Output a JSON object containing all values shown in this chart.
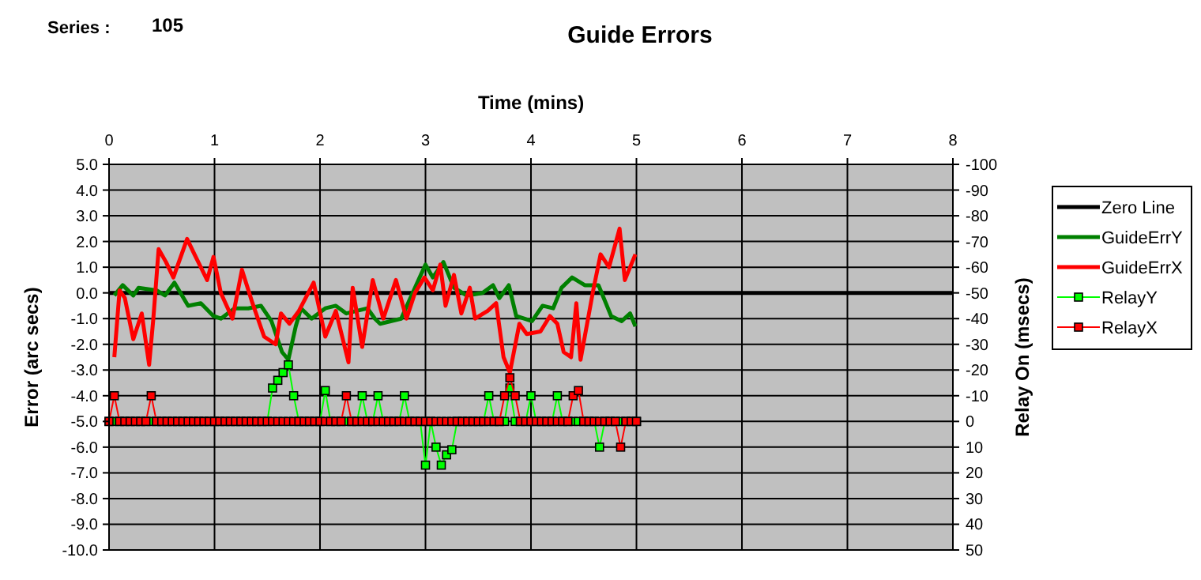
{
  "chart_data": {
    "type": "line",
    "title": "Guide Errors",
    "xlabel": "Time (mins)",
    "ylabel": "Error (arc secs)",
    "y2label": "Relay On (msecs)",
    "annotations": [
      "Series :",
      "105"
    ],
    "xlim": [
      0,
      8
    ],
    "xticks": [
      0,
      1,
      2,
      3,
      4,
      5,
      6,
      7,
      8
    ],
    "ylim": [
      -10,
      5
    ],
    "yticks": [
      {
        "value": 5,
        "label": "5.0"
      },
      {
        "value": 4,
        "label": "4.0"
      },
      {
        "value": 3,
        "label": "3.0"
      },
      {
        "value": 2,
        "label": "2.0"
      },
      {
        "value": 1,
        "label": "1.0"
      },
      {
        "value": 0,
        "label": "0.0"
      },
      {
        "value": -1,
        "label": "-1.0"
      },
      {
        "value": -2,
        "label": "-2.0"
      },
      {
        "value": -3,
        "label": "-3.0"
      },
      {
        "value": -4,
        "label": "-4.0"
      },
      {
        "value": -5,
        "label": "-5.0"
      },
      {
        "value": -6,
        "label": "-6.0"
      },
      {
        "value": -7,
        "label": "-7.0"
      },
      {
        "value": -8,
        "label": "-8.0"
      },
      {
        "value": -9,
        "label": "-9.0"
      },
      {
        "value": -10,
        "label": "-10.0"
      }
    ],
    "y2lim": [
      50,
      -100
    ],
    "y2ticks": [
      -100,
      -90,
      -80,
      -70,
      -60,
      -50,
      -40,
      -30,
      -20,
      -10,
      0,
      10,
      20,
      30,
      40,
      50
    ],
    "grid": true,
    "legend": "right",
    "line_style": "solid",
    "x": [
      0,
      0.05,
      0.1,
      0.15,
      0.2,
      0.25,
      0.3,
      0.35,
      0.4,
      0.45,
      0.5,
      0.55,
      0.6,
      0.65,
      0.7,
      0.75,
      0.8,
      0.85,
      0.9,
      0.95,
      1,
      1.05,
      1.1,
      1.15,
      1.2,
      1.25,
      1.3,
      1.35,
      1.4,
      1.45,
      1.5,
      1.55,
      1.6,
      1.65,
      1.7,
      1.75,
      1.8,
      1.85,
      1.9,
      1.95,
      2,
      2.05,
      2.1,
      2.15,
      2.2,
      2.25,
      2.3,
      2.35,
      2.4,
      2.45,
      2.5,
      2.55,
      2.6,
      2.65,
      2.7,
      2.75,
      2.8,
      2.85,
      2.9,
      2.95,
      3,
      3.05,
      3.1,
      3.15,
      3.2,
      3.25,
      3.3,
      3.35,
      3.4,
      3.45,
      3.5,
      3.55,
      3.6,
      3.65,
      3.7,
      3.75,
      3.8,
      3.85,
      3.9,
      3.95,
      4,
      4.05,
      4.1,
      4.15,
      4.2,
      4.25,
      4.3,
      4.35,
      4.4,
      4.45,
      4.5,
      4.55,
      4.6,
      4.65,
      4.7,
      4.75,
      4.8,
      4.85,
      4.9,
      4.95,
      5
    ],
    "series": [
      {
        "name": "Zero Line",
        "color": "#000000",
        "marker": "none",
        "x": [
          0,
          8
        ],
        "values": [
          0,
          0
        ]
      },
      {
        "name": "GuideErrY",
        "color": "#008000",
        "marker": "none",
        "x": [
          0.05,
          0.13,
          0.23,
          0.28,
          0.45,
          0.53,
          0.62,
          0.75,
          0.87,
          0.99,
          1.06,
          1.19,
          1.32,
          1.44,
          1.54,
          1.64,
          1.7,
          1.77,
          1.82,
          1.92,
          2.05,
          2.15,
          2.25,
          2.35,
          2.45,
          2.52,
          2.57,
          2.77,
          2.9,
          3,
          3.07,
          3.17,
          3.27,
          3.39,
          3.54,
          3.64,
          3.7,
          3.79,
          3.86,
          4.01,
          4.11,
          4.21,
          4.29,
          4.39,
          4.51,
          4.64,
          4.76,
          4.86,
          4.94,
          4.99
        ],
        "values": [
          -0.1,
          0.3,
          -0.1,
          0.2,
          0.1,
          -0.1,
          0.4,
          -0.5,
          -0.4,
          -0.9,
          -1,
          -0.6,
          -0.6,
          -0.5,
          -1.1,
          -2.3,
          -2.6,
          -1.3,
          -0.6,
          -1,
          -0.6,
          -0.5,
          -0.8,
          -0.7,
          -0.6,
          -1,
          -1.2,
          -1,
          0.2,
          1.1,
          0.6,
          1.2,
          0.2,
          -0.1,
          0,
          0.3,
          -0.2,
          0.3,
          -0.9,
          -1.1,
          -0.5,
          -0.6,
          0.2,
          0.6,
          0.3,
          0.3,
          -0.9,
          -1.1,
          -0.8,
          -1.3
        ]
      },
      {
        "name": "GuideErrX",
        "color": "#ff0000",
        "marker": "none",
        "x": [
          0.05,
          0.1,
          0.15,
          0.23,
          0.31,
          0.38,
          0.42,
          0.47,
          0.54,
          0.61,
          0.74,
          0.81,
          0.93,
          0.99,
          1.06,
          1.17,
          1.26,
          1.36,
          1.47,
          1.58,
          1.63,
          1.71,
          1.8,
          1.94,
          2.05,
          2.15,
          2.27,
          2.31,
          2.4,
          2.5,
          2.52,
          2.6,
          2.72,
          2.82,
          2.9,
          2.99,
          3.07,
          3.14,
          3.19,
          3.27,
          3.34,
          3.42,
          3.47,
          3.59,
          3.67,
          3.74,
          3.8,
          3.89,
          3.96,
          4.09,
          4.18,
          4.25,
          4.31,
          4.38,
          4.43,
          4.47,
          4.59,
          4.66,
          4.74,
          4.84,
          4.89,
          4.99
        ],
        "values": [
          -2.5,
          0.1,
          -0.2,
          -1.8,
          -0.8,
          -2.8,
          -1,
          1.7,
          1.2,
          0.6,
          2.1,
          1.5,
          0.5,
          1.4,
          0,
          -1,
          0.9,
          -0.4,
          -1.7,
          -2,
          -0.8,
          -1.2,
          -0.7,
          0.4,
          -1.7,
          -0.7,
          -2.7,
          0.2,
          -2.1,
          0.5,
          0.2,
          -1,
          0.5,
          -1,
          0,
          0.6,
          0.1,
          1.1,
          -0.5,
          0.7,
          -0.8,
          0.2,
          -1,
          -0.7,
          -0.4,
          -2.5,
          -3.1,
          -1.2,
          -1.6,
          -1.5,
          -0.9,
          -1.2,
          -2.3,
          -2.5,
          -0.4,
          -2.6,
          0.1,
          1.5,
          1,
          2.5,
          0.5,
          1.5
        ]
      },
      {
        "name": "RelayY",
        "color": "#00ff00",
        "marker": "square",
        "axis": "y2",
        "values": [
          0,
          0,
          0,
          0,
          0,
          0,
          0,
          0,
          0,
          0,
          0,
          0,
          0,
          0,
          0,
          0,
          0,
          0,
          0,
          0,
          0,
          0,
          0,
          0,
          0,
          0,
          0,
          0,
          0,
          0,
          0,
          -13,
          -16,
          -19,
          -22,
          -10,
          0,
          0,
          0,
          0,
          0,
          -12,
          0,
          0,
          0,
          0,
          0,
          0,
          -10,
          0,
          0,
          -10,
          0,
          0,
          0,
          0,
          -10,
          0,
          0,
          0,
          17,
          0,
          10,
          17,
          13,
          11,
          0,
          0,
          0,
          0,
          0,
          0,
          -10,
          0,
          0,
          0,
          -13,
          0,
          0,
          0,
          -10,
          0,
          0,
          0,
          0,
          -10,
          0,
          0,
          0,
          0,
          0,
          0,
          0,
          10,
          0,
          0,
          0,
          0,
          0,
          0,
          0
        ]
      },
      {
        "name": "RelayX",
        "color": "#ff0000",
        "marker": "square",
        "axis": "y2",
        "values": [
          0,
          -10,
          0,
          0,
          0,
          0,
          0,
          0,
          -10,
          0,
          0,
          0,
          0,
          0,
          0,
          0,
          0,
          0,
          0,
          0,
          0,
          0,
          0,
          0,
          0,
          0,
          0,
          0,
          0,
          0,
          0,
          0,
          0,
          0,
          0,
          0,
          0,
          0,
          0,
          0,
          0,
          0,
          0,
          0,
          0,
          -10,
          0,
          0,
          0,
          0,
          0,
          0,
          0,
          0,
          0,
          0,
          0,
          0,
          0,
          0,
          0,
          0,
          0,
          0,
          0,
          0,
          0,
          0,
          0,
          0,
          0,
          0,
          0,
          0,
          0,
          -10,
          -17,
          -10,
          0,
          0,
          0,
          0,
          0,
          0,
          0,
          0,
          0,
          0,
          -10,
          -12,
          0,
          0,
          0,
          0,
          0,
          0,
          0,
          10,
          0,
          0,
          0
        ]
      }
    ]
  }
}
